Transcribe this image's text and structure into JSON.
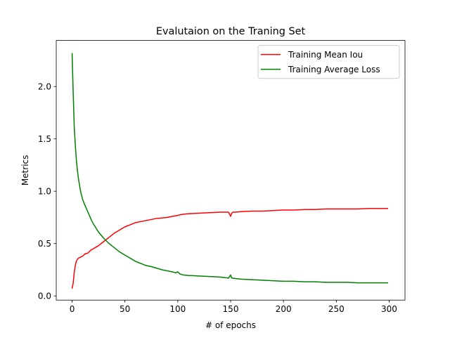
{
  "chart_data": {
    "type": "line",
    "title": "Evalutaion on the Traning Set",
    "xlabel": "# of epochs",
    "ylabel": "Metrics",
    "xlim": [
      -15,
      315
    ],
    "ylim": [
      -0.04,
      2.44
    ],
    "xticks": [
      0,
      50,
      100,
      150,
      200,
      250,
      300
    ],
    "xtick_labels": [
      "0",
      "50",
      "100",
      "150",
      "200",
      "250",
      "300"
    ],
    "yticks": [
      0.0,
      0.5,
      1.0,
      1.5,
      2.0
    ],
    "ytick_labels": [
      "0.0",
      "0.5",
      "1.0",
      "1.5",
      "2.0"
    ],
    "grid": false,
    "legend_position": "top-right",
    "series": [
      {
        "name": "Training Mean Iou",
        "color": "#ff0000",
        "x": [
          0,
          1,
          2,
          3,
          4,
          5,
          6,
          8,
          10,
          12,
          15,
          18,
          20,
          25,
          30,
          35,
          40,
          45,
          50,
          55,
          60,
          65,
          70,
          75,
          80,
          85,
          90,
          95,
          98,
          100,
          105,
          110,
          120,
          130,
          140,
          148,
          150,
          151,
          152,
          155,
          160,
          170,
          180,
          190,
          200,
          210,
          220,
          230,
          240,
          250,
          260,
          270,
          280,
          290,
          299
        ],
        "y": [
          0.07,
          0.12,
          0.22,
          0.29,
          0.33,
          0.35,
          0.36,
          0.37,
          0.38,
          0.4,
          0.41,
          0.44,
          0.45,
          0.48,
          0.52,
          0.56,
          0.6,
          0.63,
          0.66,
          0.68,
          0.7,
          0.71,
          0.72,
          0.73,
          0.74,
          0.745,
          0.75,
          0.76,
          0.765,
          0.77,
          0.78,
          0.785,
          0.79,
          0.795,
          0.8,
          0.8,
          0.76,
          0.79,
          0.8,
          0.8,
          0.805,
          0.81,
          0.81,
          0.815,
          0.82,
          0.82,
          0.825,
          0.825,
          0.83,
          0.83,
          0.83,
          0.83,
          0.835,
          0.835,
          0.835
        ]
      },
      {
        "name": "Training Average Loss",
        "color": "#008000",
        "x": [
          0,
          1,
          2,
          3,
          4,
          5,
          6,
          8,
          10,
          12,
          15,
          18,
          20,
          25,
          30,
          35,
          40,
          45,
          50,
          55,
          60,
          65,
          70,
          75,
          80,
          85,
          90,
          95,
          98,
          100,
          102,
          105,
          110,
          120,
          130,
          140,
          148,
          150,
          151,
          152,
          155,
          160,
          170,
          180,
          190,
          200,
          210,
          220,
          230,
          240,
          250,
          260,
          270,
          280,
          290,
          299
        ],
        "y": [
          2.32,
          1.95,
          1.62,
          1.45,
          1.3,
          1.2,
          1.12,
          1.0,
          0.92,
          0.87,
          0.8,
          0.73,
          0.69,
          0.61,
          0.55,
          0.5,
          0.46,
          0.42,
          0.39,
          0.36,
          0.33,
          0.31,
          0.29,
          0.28,
          0.265,
          0.25,
          0.24,
          0.23,
          0.22,
          0.23,
          0.21,
          0.2,
          0.195,
          0.19,
          0.185,
          0.18,
          0.17,
          0.2,
          0.17,
          0.17,
          0.165,
          0.16,
          0.155,
          0.15,
          0.145,
          0.14,
          0.14,
          0.135,
          0.135,
          0.13,
          0.13,
          0.13,
          0.125,
          0.125,
          0.125,
          0.125
        ]
      }
    ]
  }
}
